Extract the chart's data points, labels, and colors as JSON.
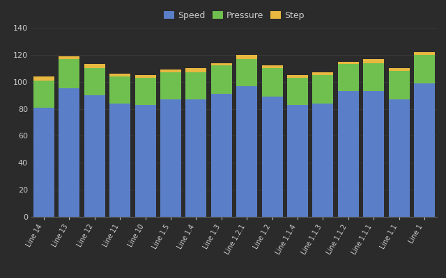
{
  "categories": [
    "Line 14",
    "Line 13",
    "Line 12",
    "Line 11",
    "Line 10",
    "Line 1.5",
    "Line 1.4",
    "Line 1.3",
    "Line 1.2.1",
    "Line 1.2",
    "Line 1.1.4",
    "Line 1.1.3",
    "Line 1.1.2",
    "Line 1.1.1",
    "Line 1.1",
    "Line 1"
  ],
  "speed": [
    81,
    95,
    90,
    84,
    83,
    87,
    87,
    91,
    97,
    89,
    83,
    84,
    93,
    93,
    87,
    99
  ],
  "pressure": [
    20,
    22,
    20,
    20,
    20,
    20,
    20,
    21,
    20,
    21,
    20,
    21,
    20,
    21,
    21,
    21
  ],
  "step": [
    3,
    2,
    3,
    2,
    2,
    2,
    3,
    2,
    3,
    2,
    2,
    2,
    2,
    3,
    2,
    2
  ],
  "speed_color": "#5b7ec9",
  "pressure_color": "#70c050",
  "step_color": "#e8b840",
  "background_color": "#2b2b2b",
  "plot_bg_color": "#2b2b2b",
  "grid_color": "#444444",
  "text_color": "#cccccc",
  "legend_labels": [
    "Speed",
    "Pressure",
    "Step"
  ],
  "ylim": [
    0,
    140
  ],
  "yticks": [
    0,
    20,
    40,
    60,
    80,
    100,
    120,
    140
  ],
  "bar_width": 0.82
}
